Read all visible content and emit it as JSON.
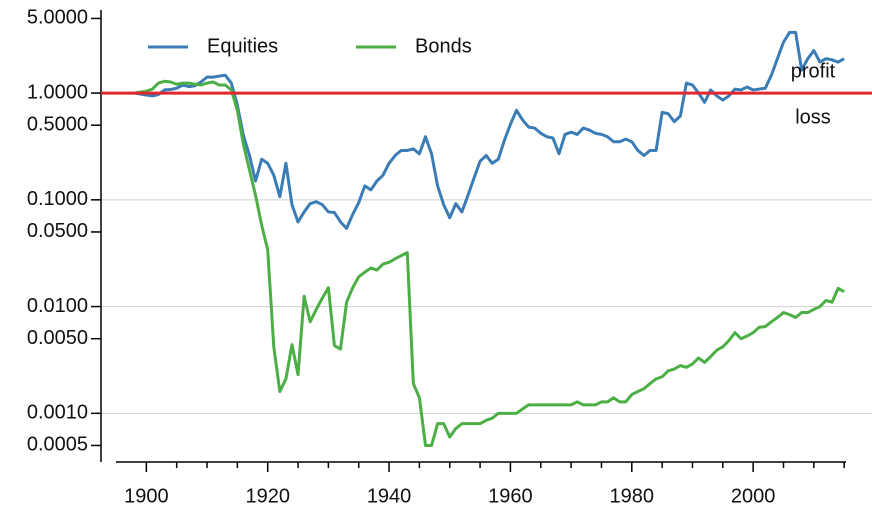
{
  "chart_data": {
    "type": "line",
    "log_scale_y": true,
    "grid": "major",
    "legend": "upper left",
    "x": [
      1898,
      1899,
      1900,
      1901,
      1902,
      1903,
      1904,
      1905,
      1906,
      1907,
      1908,
      1909,
      1910,
      1911,
      1912,
      1913,
      1914,
      1915,
      1916,
      1917,
      1918,
      1919,
      1920,
      1921,
      1922,
      1923,
      1924,
      1925,
      1926,
      1927,
      1928,
      1929,
      1930,
      1931,
      1932,
      1933,
      1934,
      1935,
      1936,
      1937,
      1938,
      1939,
      1940,
      1941,
      1942,
      1943,
      1944,
      1945,
      1946,
      1947,
      1948,
      1949,
      1950,
      1951,
      1952,
      1953,
      1954,
      1955,
      1956,
      1957,
      1958,
      1959,
      1960,
      1961,
      1962,
      1963,
      1964,
      1965,
      1966,
      1967,
      1968,
      1969,
      1970,
      1971,
      1972,
      1973,
      1974,
      1975,
      1976,
      1977,
      1978,
      1979,
      1980,
      1981,
      1982,
      1983,
      1984,
      1985,
      1986,
      1987,
      1988,
      1989,
      1990,
      1991,
      1992,
      1993,
      1994,
      1995,
      1996,
      1997,
      1998,
      1999,
      2000,
      2001,
      2002,
      2003,
      2004,
      2005,
      2006,
      2007,
      2008,
      2009,
      2010,
      2011,
      2012,
      2013,
      2014,
      2015
    ],
    "series": [
      {
        "name": "Equities",
        "color": "#3a7cb5",
        "values": [
          1.0,
          0.98,
          0.96,
          0.94,
          0.97,
          1.07,
          1.08,
          1.11,
          1.19,
          1.15,
          1.17,
          1.27,
          1.41,
          1.41,
          1.44,
          1.47,
          1.24,
          0.77,
          0.4,
          0.26,
          0.15,
          0.24,
          0.22,
          0.17,
          0.107,
          0.22,
          0.09,
          0.062,
          0.077,
          0.092,
          0.096,
          0.09,
          0.077,
          0.076,
          0.062,
          0.054,
          0.073,
          0.094,
          0.135,
          0.124,
          0.15,
          0.17,
          0.22,
          0.26,
          0.29,
          0.29,
          0.3,
          0.27,
          0.39,
          0.27,
          0.135,
          0.09,
          0.068,
          0.092,
          0.077,
          0.11,
          0.16,
          0.23,
          0.26,
          0.22,
          0.24,
          0.36,
          0.51,
          0.69,
          0.56,
          0.48,
          0.47,
          0.42,
          0.39,
          0.38,
          0.27,
          0.41,
          0.43,
          0.41,
          0.47,
          0.45,
          0.42,
          0.41,
          0.39,
          0.35,
          0.35,
          0.37,
          0.35,
          0.29,
          0.26,
          0.29,
          0.29,
          0.66,
          0.64,
          0.54,
          0.61,
          1.24,
          1.19,
          1.0,
          0.82,
          1.07,
          0.94,
          0.86,
          0.94,
          1.09,
          1.07,
          1.14,
          1.07,
          1.09,
          1.11,
          1.47,
          2.1,
          3.0,
          3.7,
          3.7,
          1.64,
          2.1,
          2.5,
          1.95,
          2.1,
          2.05,
          1.95,
          2.1
        ]
      },
      {
        "name": "Bonds",
        "color": "#4caf45",
        "values": [
          1.0,
          1.02,
          1.04,
          1.09,
          1.24,
          1.29,
          1.27,
          1.21,
          1.24,
          1.24,
          1.21,
          1.19,
          1.24,
          1.27,
          1.19,
          1.19,
          1.07,
          0.69,
          0.33,
          0.19,
          0.11,
          0.058,
          0.034,
          0.0042,
          0.0016,
          0.0021,
          0.0044,
          0.0023,
          0.0125,
          0.0072,
          0.0094,
          0.012,
          0.015,
          0.0043,
          0.004,
          0.011,
          0.015,
          0.019,
          0.021,
          0.023,
          0.022,
          0.025,
          0.026,
          0.028,
          0.03,
          0.032,
          0.0019,
          0.0014,
          0.0005,
          0.0005,
          0.0008,
          0.0008,
          0.0006,
          0.00072,
          0.0008,
          0.0008,
          0.0008,
          0.0008,
          0.00086,
          0.0009,
          0.001,
          0.001,
          0.001,
          0.001,
          0.0011,
          0.0012,
          0.0012,
          0.0012,
          0.0012,
          0.0012,
          0.0012,
          0.0012,
          0.0012,
          0.00128,
          0.0012,
          0.0012,
          0.0012,
          0.00128,
          0.00128,
          0.0014,
          0.00128,
          0.00128,
          0.0015,
          0.0016,
          0.0017,
          0.0019,
          0.0021,
          0.0022,
          0.0025,
          0.0026,
          0.0028,
          0.0027,
          0.0029,
          0.0033,
          0.003,
          0.0034,
          0.0039,
          0.0042,
          0.0048,
          0.0057,
          0.005,
          0.0053,
          0.0057,
          0.0064,
          0.0065,
          0.0072,
          0.0079,
          0.0088,
          0.0084,
          0.0079,
          0.0088,
          0.0088,
          0.0094,
          0.01,
          0.0114,
          0.011,
          0.0148,
          0.0138
        ]
      }
    ],
    "hline": {
      "value": 1,
      "color": "#e0282e"
    },
    "annotations": [
      {
        "text": "profit"
      },
      {
        "text": "loss"
      }
    ],
    "xlim": [
      1895,
      2015.3
    ],
    "xticks": [
      1900,
      1920,
      1940,
      1960,
      1980,
      2000
    ],
    "xminorticks": [
      1905,
      1910,
      1915,
      1925,
      1930,
      1935,
      1945,
      1950,
      1955,
      1965,
      1970,
      1975,
      1985,
      1990,
      1995,
      2005,
      2010,
      2015
    ],
    "ylim": [
      0.00035,
      6
    ],
    "yticks": [
      {
        "value": 5,
        "label": "5.0000"
      },
      {
        "value": 1,
        "label": "1.0000"
      },
      {
        "value": 0.5,
        "label": "0.5000"
      },
      {
        "value": 0.1,
        "label": "0.1000"
      },
      {
        "value": 0.05,
        "label": "0.0500"
      },
      {
        "value": 0.01,
        "label": "0.0100"
      },
      {
        "value": 0.005,
        "label": "0.0050"
      },
      {
        "value": 0.001,
        "label": "0.0010"
      },
      {
        "value": 0.0005,
        "label": "0.0005"
      }
    ]
  }
}
